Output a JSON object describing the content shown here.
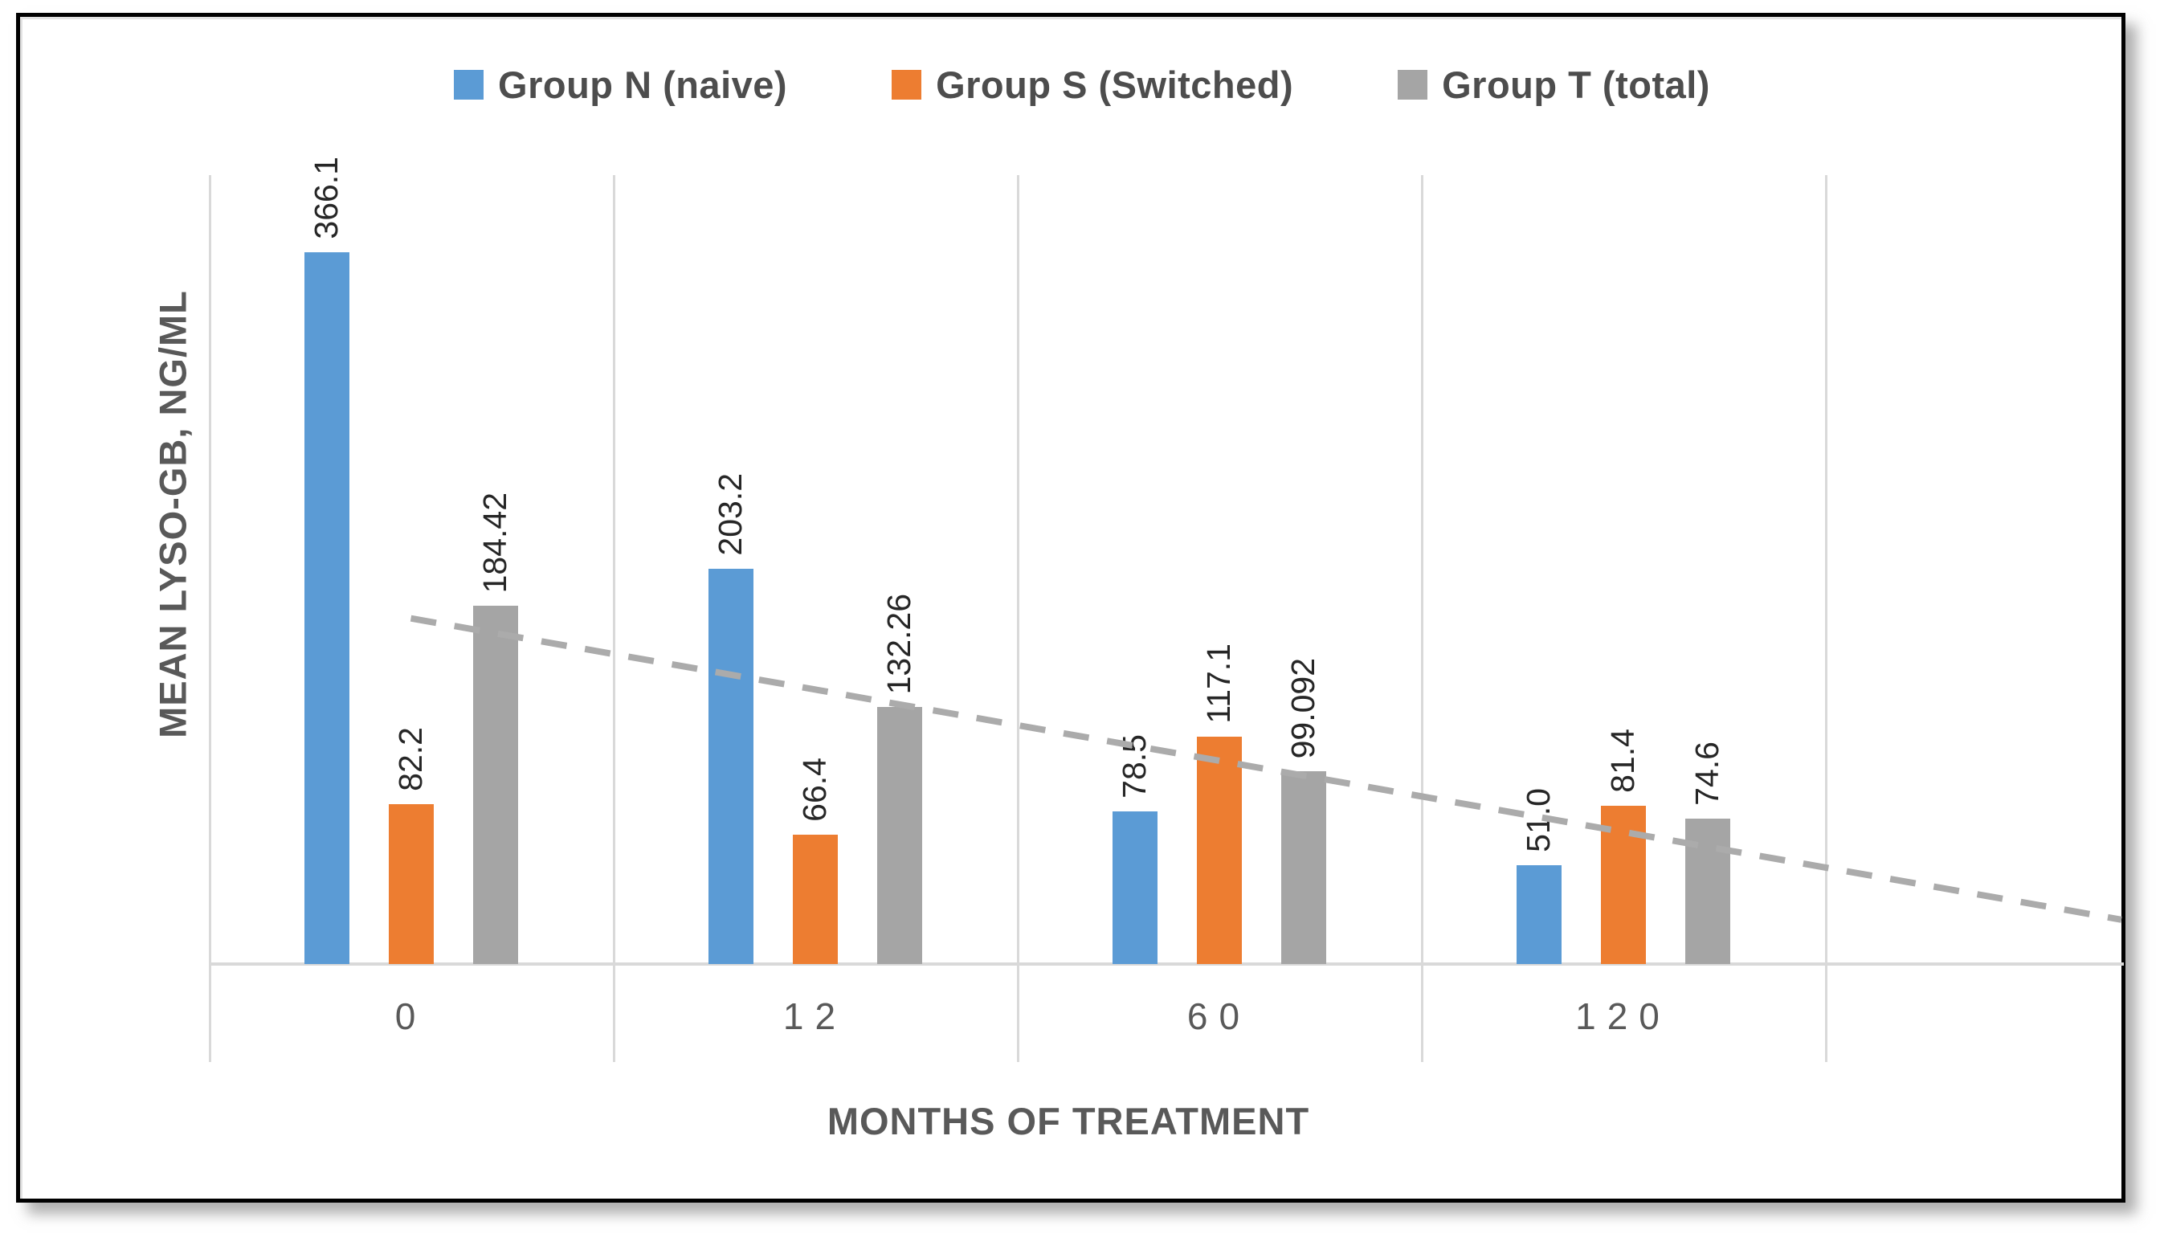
{
  "figure": {
    "background": "#ffffff",
    "border_color": "#000000"
  },
  "chart_data": {
    "type": "bar",
    "categories": [
      "0",
      "12",
      "60",
      "120"
    ],
    "series": [
      {
        "name": "Group N (naive)",
        "color": "#5B9BD5",
        "values": [
          366.1,
          203.2,
          78.5,
          51.0
        ],
        "value_labels": [
          "366.1",
          "203.2",
          "78.5",
          "51.0"
        ]
      },
      {
        "name": "Group S (Switched)",
        "color": "#ED7D31",
        "values": [
          82.2,
          66.4,
          117.1,
          81.4
        ],
        "value_labels": [
          "82.2",
          "66.4",
          "117.1",
          "81.4"
        ]
      },
      {
        "name": "Group T (total)",
        "color": "#A5A5A5",
        "values": [
          184.42,
          132.26,
          99.092,
          74.6
        ],
        "value_labels": [
          "184.42",
          "132.26",
          "99.092",
          "74.6"
        ]
      }
    ],
    "xlabel": "MONTHS OF TREATMENT",
    "ylabel": "MEAN LYSO-GB, NG/ML",
    "ylim": [
      0,
      405
    ],
    "y_axis_tick_labels_visible": false,
    "grid": "vertical category separators only",
    "legend_position": "top",
    "data_label_style": "rotated 90 degrees above bars",
    "trendline": {
      "applies_to": "Group T (total)",
      "style": "dashed",
      "color": "#ABABAB",
      "start": {
        "category_index": 0,
        "value": 177
      },
      "end": {
        "at_plot_right_edge": true,
        "value": 22
      }
    },
    "gridline_color": "#D9D9D9",
    "axis_text_color": "#595959",
    "data_label_color": "#262626"
  }
}
